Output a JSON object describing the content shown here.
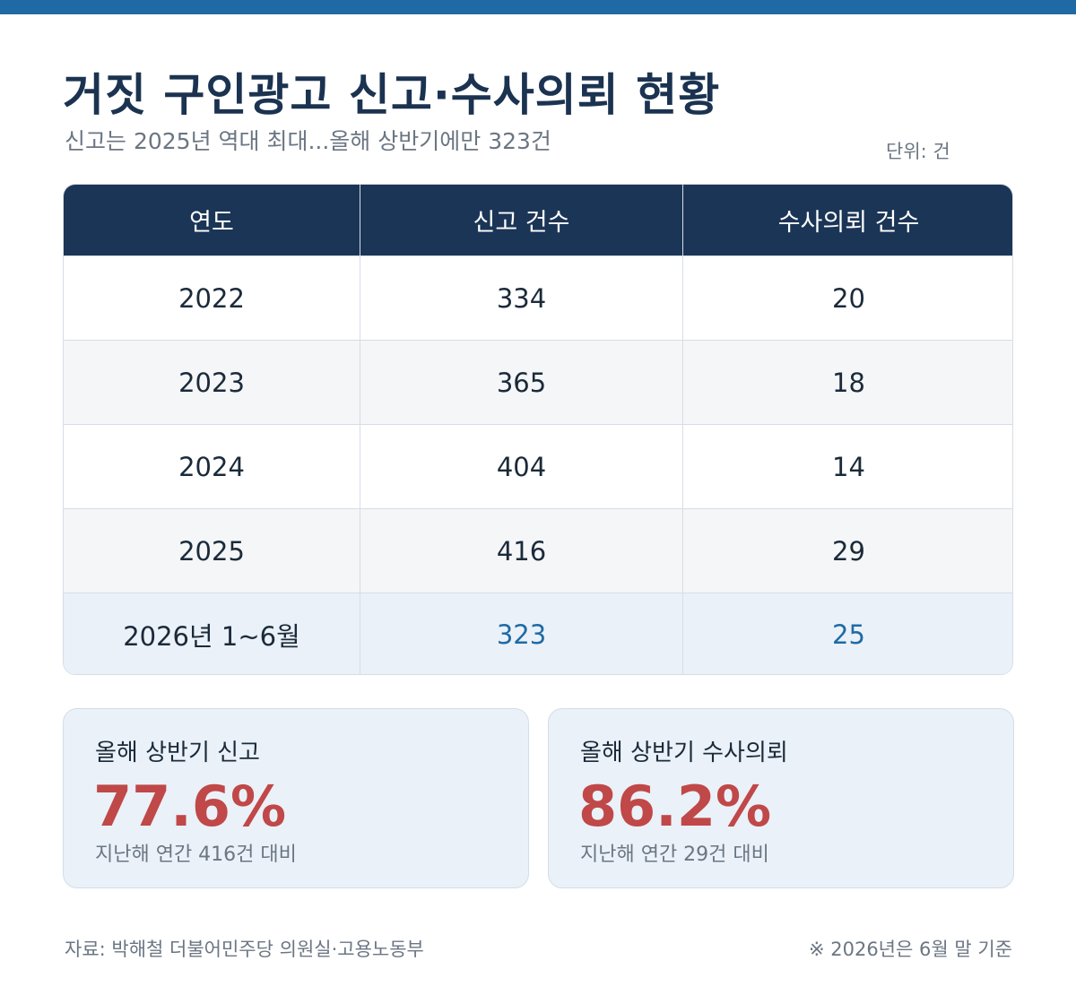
{
  "title": "거짓 구인광고 신고·수사의뢰 현황",
  "subtitle": "신고는 2025년 역대 최대...올해 상반기에만 323건",
  "unit": "단위: 건",
  "chart_data": {
    "type": "table",
    "columns": [
      "연도",
      "신고 건수",
      "수사의뢰 건수"
    ],
    "rows": [
      [
        "2022",
        "334",
        "20"
      ],
      [
        "2023",
        "365",
        "18"
      ],
      [
        "2024",
        "404",
        "14"
      ],
      [
        "2025",
        "416",
        "29"
      ],
      [
        "2026년 1~6월",
        "323",
        "25"
      ]
    ]
  },
  "cards": [
    {
      "label": "올해 상반기 신고",
      "value": "77.6%",
      "note": "지난해 연간 416건 대비"
    },
    {
      "label": "올해 상반기 수사의뢰",
      "value": "86.2%",
      "note": "지난해 연간 29건 대비"
    }
  ],
  "source": "자료: 박해철 더불어민주당 의원실·고용노동부",
  "footnote": "※ 2026년은 6월 말 기준",
  "colors": {
    "top_bar": "#1f6aa5",
    "header_bg": "#1b3556",
    "highlight_text": "#1f6aa5",
    "card_value": "#c04848",
    "card_bg": "#eaf1f8"
  }
}
